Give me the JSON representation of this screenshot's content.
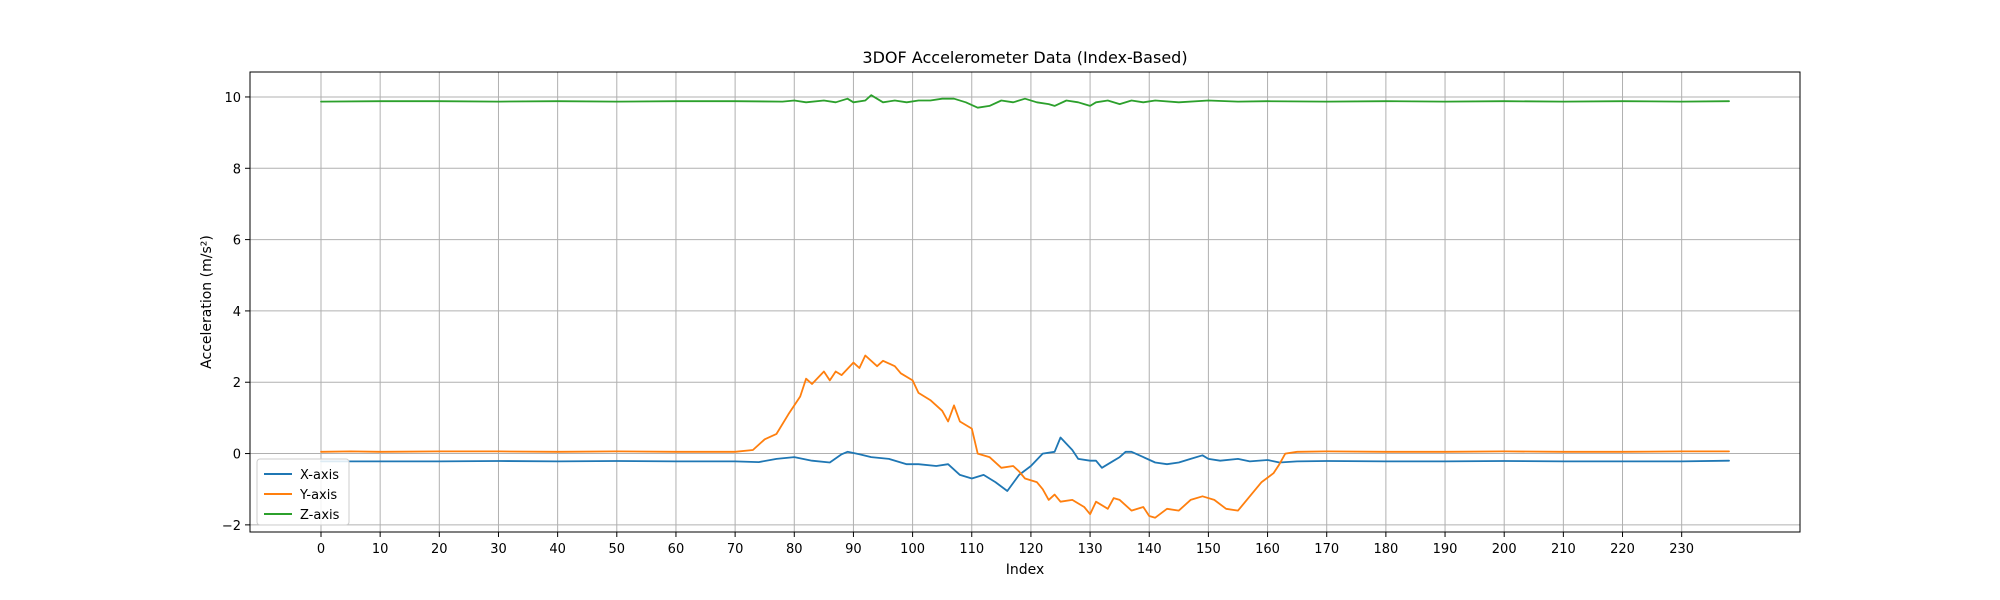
{
  "chart_data": {
    "type": "line",
    "title": "3DOF Accelerometer Data (Index-Based)",
    "xlabel": "Index",
    "ylabel": "Acceleration (m/s²)",
    "xlim": [
      -12,
      250
    ],
    "ylim": [
      -2.2,
      10.7
    ],
    "xticks": [
      0,
      10,
      20,
      30,
      40,
      50,
      60,
      70,
      80,
      90,
      100,
      110,
      120,
      130,
      140,
      150,
      160,
      170,
      180,
      190,
      200,
      210,
      220,
      230
    ],
    "yticks": [
      -2,
      0,
      2,
      4,
      6,
      8,
      10
    ],
    "grid": true,
    "legend_position": "lower-left",
    "series": [
      {
        "name": "X-axis",
        "color": "#1f77b4",
        "points": [
          [
            0,
            -0.22
          ],
          [
            10,
            -0.22
          ],
          [
            20,
            -0.22
          ],
          [
            30,
            -0.21
          ],
          [
            40,
            -0.22
          ],
          [
            50,
            -0.21
          ],
          [
            60,
            -0.22
          ],
          [
            70,
            -0.22
          ],
          [
            74,
            -0.24
          ],
          [
            77,
            -0.15
          ],
          [
            80,
            -0.1
          ],
          [
            83,
            -0.2
          ],
          [
            86,
            -0.25
          ],
          [
            88,
            -0.02
          ],
          [
            89,
            0.05
          ],
          [
            91,
            -0.02
          ],
          [
            93,
            -0.1
          ],
          [
            96,
            -0.15
          ],
          [
            99,
            -0.3
          ],
          [
            101,
            -0.3
          ],
          [
            104,
            -0.35
          ],
          [
            106,
            -0.3
          ],
          [
            108,
            -0.6
          ],
          [
            110,
            -0.7
          ],
          [
            112,
            -0.6
          ],
          [
            114,
            -0.8
          ],
          [
            116,
            -1.05
          ],
          [
            118,
            -0.6
          ],
          [
            120,
            -0.35
          ],
          [
            122,
            0.0
          ],
          [
            124,
            0.05
          ],
          [
            125,
            0.45
          ],
          [
            127,
            0.1
          ],
          [
            128,
            -0.15
          ],
          [
            130,
            -0.2
          ],
          [
            131,
            -0.2
          ],
          [
            132,
            -0.4
          ],
          [
            134,
            -0.2
          ],
          [
            135,
            -0.1
          ],
          [
            136,
            0.05
          ],
          [
            137,
            0.05
          ],
          [
            139,
            -0.1
          ],
          [
            141,
            -0.25
          ],
          [
            143,
            -0.3
          ],
          [
            145,
            -0.25
          ],
          [
            147,
            -0.15
          ],
          [
            149,
            -0.05
          ],
          [
            150,
            -0.15
          ],
          [
            152,
            -0.2
          ],
          [
            155,
            -0.15
          ],
          [
            157,
            -0.22
          ],
          [
            160,
            -0.18
          ],
          [
            162,
            -0.25
          ],
          [
            165,
            -0.22
          ],
          [
            170,
            -0.21
          ],
          [
            180,
            -0.22
          ],
          [
            190,
            -0.22
          ],
          [
            200,
            -0.21
          ],
          [
            210,
            -0.22
          ],
          [
            220,
            -0.22
          ],
          [
            230,
            -0.22
          ],
          [
            238,
            -0.2
          ]
        ]
      },
      {
        "name": "Y-axis",
        "color": "#ff7f0e",
        "points": [
          [
            0,
            0.05
          ],
          [
            5,
            0.06
          ],
          [
            10,
            0.05
          ],
          [
            20,
            0.06
          ],
          [
            30,
            0.06
          ],
          [
            40,
            0.05
          ],
          [
            50,
            0.06
          ],
          [
            60,
            0.05
          ],
          [
            70,
            0.05
          ],
          [
            73,
            0.1
          ],
          [
            75,
            0.4
          ],
          [
            77,
            0.55
          ],
          [
            79,
            1.1
          ],
          [
            81,
            1.6
          ],
          [
            82,
            2.1
          ],
          [
            83,
            1.95
          ],
          [
            85,
            2.3
          ],
          [
            86,
            2.05
          ],
          [
            87,
            2.3
          ],
          [
            88,
            2.2
          ],
          [
            90,
            2.55
          ],
          [
            91,
            2.4
          ],
          [
            92,
            2.75
          ],
          [
            94,
            2.45
          ],
          [
            95,
            2.6
          ],
          [
            97,
            2.45
          ],
          [
            98,
            2.25
          ],
          [
            100,
            2.05
          ],
          [
            101,
            1.7
          ],
          [
            103,
            1.5
          ],
          [
            105,
            1.2
          ],
          [
            106,
            0.9
          ],
          [
            107,
            1.35
          ],
          [
            108,
            0.9
          ],
          [
            110,
            0.7
          ],
          [
            111,
            0.0
          ],
          [
            113,
            -0.1
          ],
          [
            115,
            -0.4
          ],
          [
            117,
            -0.35
          ],
          [
            118,
            -0.5
          ],
          [
            119,
            -0.7
          ],
          [
            121,
            -0.8
          ],
          [
            122,
            -1.0
          ],
          [
            123,
            -1.3
          ],
          [
            124,
            -1.15
          ],
          [
            125,
            -1.35
          ],
          [
            127,
            -1.3
          ],
          [
            129,
            -1.5
          ],
          [
            130,
            -1.7
          ],
          [
            131,
            -1.35
          ],
          [
            133,
            -1.55
          ],
          [
            134,
            -1.25
          ],
          [
            135,
            -1.3
          ],
          [
            137,
            -1.6
          ],
          [
            139,
            -1.5
          ],
          [
            140,
            -1.75
          ],
          [
            141,
            -1.8
          ],
          [
            143,
            -1.55
          ],
          [
            145,
            -1.6
          ],
          [
            147,
            -1.3
          ],
          [
            149,
            -1.2
          ],
          [
            151,
            -1.3
          ],
          [
            153,
            -1.55
          ],
          [
            155,
            -1.6
          ],
          [
            157,
            -1.2
          ],
          [
            159,
            -0.8
          ],
          [
            161,
            -0.55
          ],
          [
            162,
            -0.3
          ],
          [
            163,
            0.0
          ],
          [
            165,
            0.05
          ],
          [
            170,
            0.06
          ],
          [
            180,
            0.05
          ],
          [
            190,
            0.05
          ],
          [
            200,
            0.06
          ],
          [
            210,
            0.05
          ],
          [
            220,
            0.05
          ],
          [
            230,
            0.06
          ],
          [
            238,
            0.06
          ]
        ]
      },
      {
        "name": "Z-axis",
        "color": "#2ca02c",
        "points": [
          [
            0,
            9.87
          ],
          [
            10,
            9.88
          ],
          [
            20,
            9.88
          ],
          [
            30,
            9.87
          ],
          [
            40,
            9.88
          ],
          [
            50,
            9.87
          ],
          [
            60,
            9.88
          ],
          [
            70,
            9.88
          ],
          [
            78,
            9.87
          ],
          [
            80,
            9.9
          ],
          [
            82,
            9.85
          ],
          [
            85,
            9.9
          ],
          [
            87,
            9.85
          ],
          [
            89,
            9.95
          ],
          [
            90,
            9.85
          ],
          [
            92,
            9.9
          ],
          [
            93,
            10.05
          ],
          [
            95,
            9.85
          ],
          [
            97,
            9.9
          ],
          [
            99,
            9.85
          ],
          [
            101,
            9.9
          ],
          [
            103,
            9.9
          ],
          [
            105,
            9.95
          ],
          [
            107,
            9.95
          ],
          [
            109,
            9.85
          ],
          [
            111,
            9.7
          ],
          [
            113,
            9.75
          ],
          [
            115,
            9.9
          ],
          [
            117,
            9.85
          ],
          [
            119,
            9.95
          ],
          [
            121,
            9.85
          ],
          [
            123,
            9.8
          ],
          [
            124,
            9.75
          ],
          [
            126,
            9.9
          ],
          [
            128,
            9.85
          ],
          [
            129,
            9.8
          ],
          [
            130,
            9.75
          ],
          [
            131,
            9.85
          ],
          [
            133,
            9.9
          ],
          [
            135,
            9.8
          ],
          [
            137,
            9.9
          ],
          [
            139,
            9.85
          ],
          [
            141,
            9.9
          ],
          [
            145,
            9.85
          ],
          [
            150,
            9.9
          ],
          [
            155,
            9.87
          ],
          [
            160,
            9.88
          ],
          [
            170,
            9.87
          ],
          [
            180,
            9.88
          ],
          [
            190,
            9.87
          ],
          [
            200,
            9.88
          ],
          [
            210,
            9.87
          ],
          [
            220,
            9.88
          ],
          [
            230,
            9.87
          ],
          [
            238,
            9.88
          ]
        ]
      }
    ]
  }
}
